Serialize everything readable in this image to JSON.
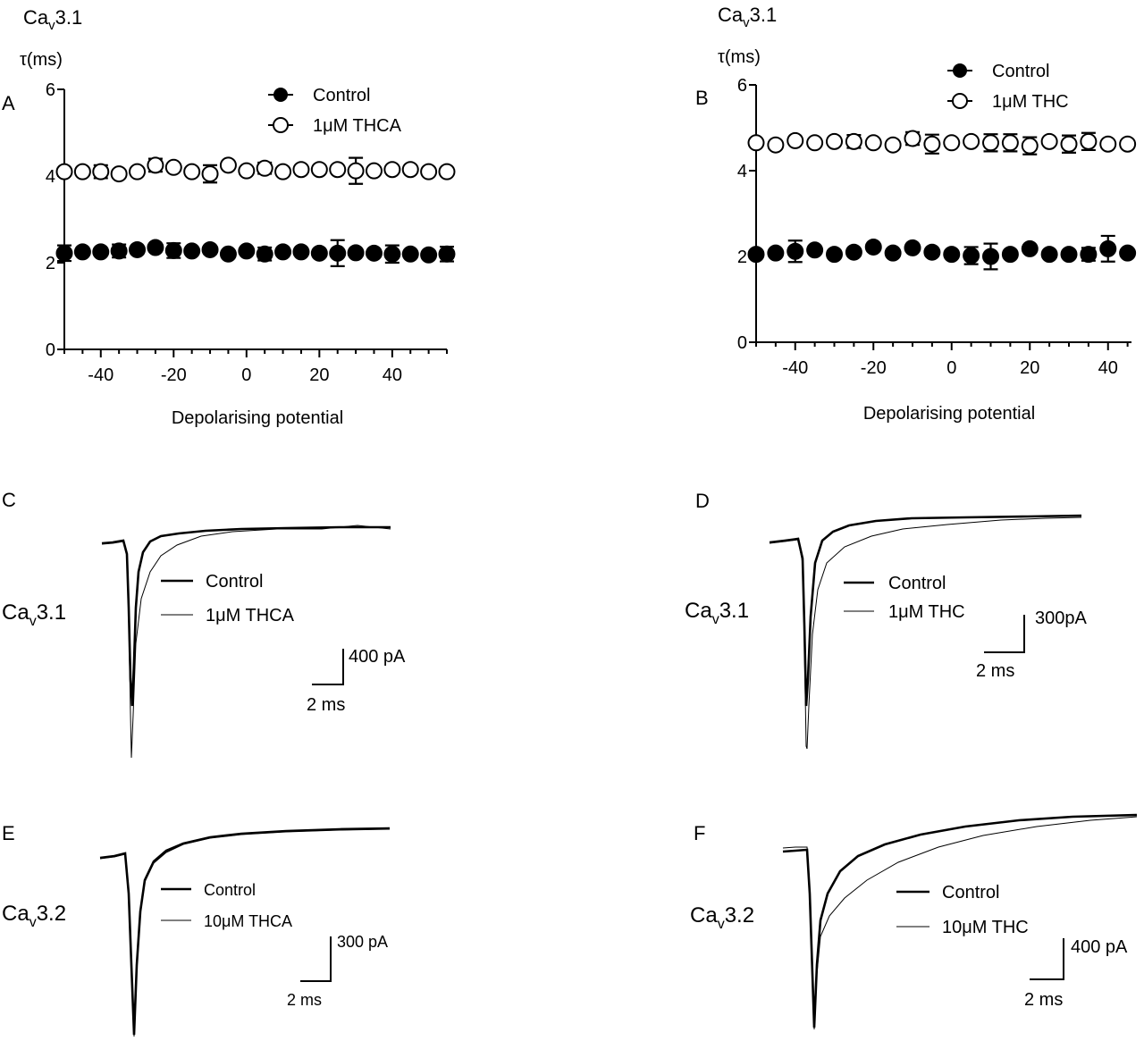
{
  "panels": {
    "A": {
      "letter": "A",
      "title": {
        "base": "Ca",
        "sub": "v",
        "tail": "3.1"
      },
      "ylabel": "τ(ms)",
      "xlabel": "Depolarising potential",
      "legend": [
        "Control",
        "1μM THCA"
      ]
    },
    "B": {
      "letter": "B",
      "title": {
        "base": "Ca",
        "sub": "v",
        "tail": "3.1"
      },
      "ylabel": "τ(ms)",
      "xlabel": "Depolarising potential",
      "legend": [
        "Control",
        "1μM THC"
      ]
    },
    "C": {
      "letter": "C",
      "channel": {
        "base": "Ca",
        "sub": "v",
        "tail": "3.1"
      },
      "legend": [
        "Control",
        "1μM THCA"
      ],
      "scale_y": "400 pA",
      "scale_x": "2 ms"
    },
    "D": {
      "letter": "D",
      "channel": {
        "base": "Ca",
        "sub": "v",
        "tail": "3.1"
      },
      "legend": [
        "Control",
        "1μM THC"
      ],
      "scale_y": "300pA",
      "scale_x": "2 ms"
    },
    "E": {
      "letter": "E",
      "channel": {
        "base": "Ca",
        "sub": "v",
        "tail": "3.2"
      },
      "legend": [
        "Control",
        "10μM THCA"
      ],
      "scale_y": "300 pA",
      "scale_x": "2 ms"
    },
    "F": {
      "letter": "F",
      "channel": {
        "base": "Ca",
        "sub": "v",
        "tail": "3.2"
      },
      "legend": [
        "Control",
        "10μM THC"
      ],
      "scale_y": "400 pA",
      "scale_x": "2 ms"
    }
  },
  "chart_data": [
    {
      "panel": "A",
      "type": "scatter",
      "xlabel": "Depolarising potential",
      "ylabel": "τ(ms)",
      "xlim": [
        -50,
        55
      ],
      "ylim": [
        0,
        6
      ],
      "xticks": [
        -40,
        -20,
        0,
        20,
        40
      ],
      "yticks": [
        0,
        2,
        4,
        6
      ],
      "legend_position": "top-right",
      "x": [
        -50,
        -45,
        -40,
        -35,
        -30,
        -25,
        -20,
        -15,
        -10,
        -5,
        0,
        5,
        10,
        15,
        20,
        25,
        30,
        35,
        40,
        45,
        50,
        55
      ],
      "series": [
        {
          "name": "Control",
          "marker": "filled-circle",
          "values": [
            2.22,
            2.25,
            2.25,
            2.27,
            2.3,
            2.35,
            2.28,
            2.27,
            2.3,
            2.2,
            2.27,
            2.2,
            2.25,
            2.25,
            2.22,
            2.22,
            2.23,
            2.22,
            2.2,
            2.2,
            2.18,
            2.2
          ],
          "errors": [
            0.18,
            0,
            0.05,
            0.15,
            0,
            0.06,
            0.17,
            0,
            0.05,
            0,
            0.06,
            0.15,
            0,
            0,
            0,
            0.3,
            0,
            0,
            0.2,
            0,
            0,
            0.17
          ]
        },
        {
          "name": "1μM THCA",
          "marker": "open-circle",
          "values": [
            4.1,
            4.1,
            4.1,
            4.05,
            4.1,
            4.25,
            4.2,
            4.1,
            4.05,
            4.25,
            4.12,
            4.18,
            4.1,
            4.15,
            4.15,
            4.15,
            4.12,
            4.12,
            4.15,
            4.15,
            4.1,
            4.1
          ],
          "errors": [
            0,
            0,
            0.15,
            0,
            0,
            0.15,
            0,
            0,
            0.2,
            0,
            0,
            0.13,
            0,
            0,
            0,
            0,
            0.3,
            0,
            0,
            0,
            0,
            0
          ]
        }
      ]
    },
    {
      "panel": "B",
      "type": "scatter",
      "xlabel": "Depolarising potential",
      "ylabel": "τ(ms)",
      "xlim": [
        -50,
        46
      ],
      "ylim": [
        0,
        6
      ],
      "xticks": [
        -40,
        -20,
        0,
        20,
        40
      ],
      "yticks": [
        0,
        2,
        4,
        6
      ],
      "legend_position": "top-right",
      "x": [
        -50,
        -45,
        -40,
        -35,
        -30,
        -25,
        -20,
        -15,
        -10,
        -5,
        0,
        5,
        10,
        15,
        20,
        25,
        30,
        35,
        40,
        45
      ],
      "series": [
        {
          "name": "Control",
          "marker": "filled-circle",
          "values": [
            2.05,
            2.08,
            2.12,
            2.15,
            2.05,
            2.1,
            2.22,
            2.08,
            2.2,
            2.1,
            2.05,
            2.02,
            2.0,
            2.05,
            2.18,
            2.05,
            2.05,
            2.05,
            2.18,
            2.08
          ],
          "errors": [
            0,
            0,
            0.25,
            0,
            0,
            0,
            0,
            0,
            0,
            0,
            0,
            0.2,
            0.3,
            0,
            0,
            0,
            0,
            0.15,
            0.3,
            0
          ]
        },
        {
          "name": "1μM THC",
          "marker": "open-circle",
          "values": [
            4.65,
            4.6,
            4.7,
            4.65,
            4.68,
            4.68,
            4.65,
            4.6,
            4.75,
            4.62,
            4.65,
            4.68,
            4.65,
            4.65,
            4.58,
            4.68,
            4.62,
            4.68,
            4.62,
            4.62
          ],
          "errors": [
            0,
            0,
            0,
            0,
            0,
            0.15,
            0,
            0,
            0.15,
            0.22,
            0,
            0,
            0.2,
            0.2,
            0.2,
            0,
            0.2,
            0.2,
            0,
            0
          ]
        }
      ]
    }
  ]
}
